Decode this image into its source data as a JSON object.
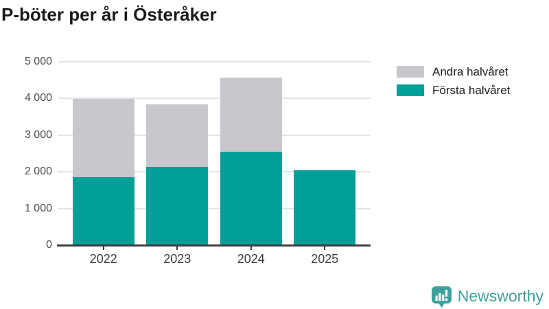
{
  "title": "P-böter per år i Österåker",
  "colors": {
    "first_half": "#00a099",
    "second_half": "#c8c7ce",
    "axis": "#3d3d3d",
    "grid": "#e4e4e6",
    "title_text": "#1a1a1a",
    "brand_teal": "#3ea09a"
  },
  "legend": {
    "items": [
      {
        "label": "Andra halvåret",
        "color": "#c8c7ce"
      },
      {
        "label": "Första halvåret",
        "color": "#00a099"
      }
    ]
  },
  "chart_data": {
    "type": "bar",
    "stacked": true,
    "title": "P-böter per år i Österåker",
    "categories": [
      "2022",
      "2023",
      "2024",
      "2025"
    ],
    "series": [
      {
        "name": "Första halvåret",
        "color": "#00a099",
        "values": [
          1850,
          2130,
          2550,
          2040
        ]
      },
      {
        "name": "Andra halvåret",
        "color": "#c8c7ce",
        "values": [
          2140,
          1710,
          2010,
          0
        ]
      }
    ],
    "totals": [
      3990,
      3840,
      4560,
      2040
    ],
    "xlabel": "",
    "ylabel": "",
    "ylim": [
      0,
      5000
    ],
    "yticks": [
      0,
      1000,
      2000,
      3000,
      4000,
      5000
    ],
    "ytick_labels": [
      "0",
      "1 000",
      "2 000",
      "3 000",
      "4 000",
      "5 000"
    ],
    "grid": true,
    "legend_position": "right-top"
  },
  "branding": {
    "name": "Newsworthy"
  }
}
